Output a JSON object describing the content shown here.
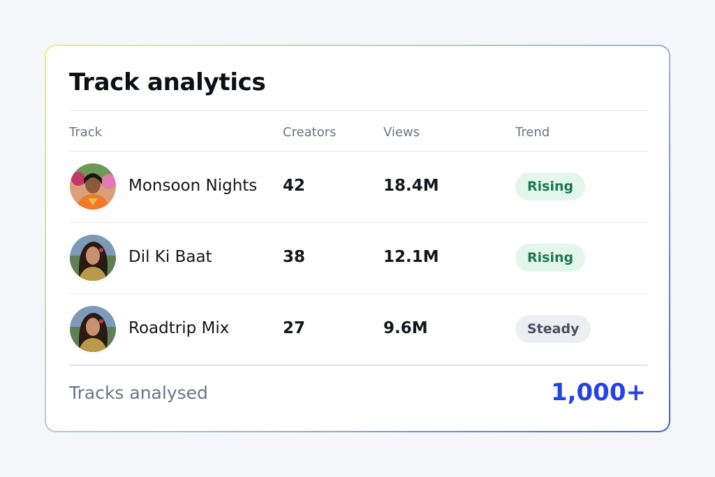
{
  "card": {
    "title": "Track analytics"
  },
  "table": {
    "headers": {
      "track": "Track",
      "creators": "Creators",
      "views": "Views",
      "trend": "Trend"
    },
    "rows": [
      {
        "track": "Monsoon Nights",
        "creators": "42",
        "views": "18.4M",
        "trend": "Rising"
      },
      {
        "track": "Dil Ki Baat",
        "creators": "38",
        "views": "12.1M",
        "trend": "Rising"
      },
      {
        "track": "Roadtrip Mix",
        "creators": "27",
        "views": "9.6M",
        "trend": "Steady"
      }
    ]
  },
  "footer": {
    "label": "Tracks analysed",
    "value": "1,000+"
  },
  "colors": {
    "accent": "#2442e6",
    "rising_bg": "#e3f6ec",
    "rising_text": "#1a7a4c",
    "steady_bg": "#eceef3",
    "steady_text": "#4a4f5c"
  },
  "icons": [
    "avatar-photo-1",
    "avatar-photo-2",
    "avatar-photo-3"
  ]
}
